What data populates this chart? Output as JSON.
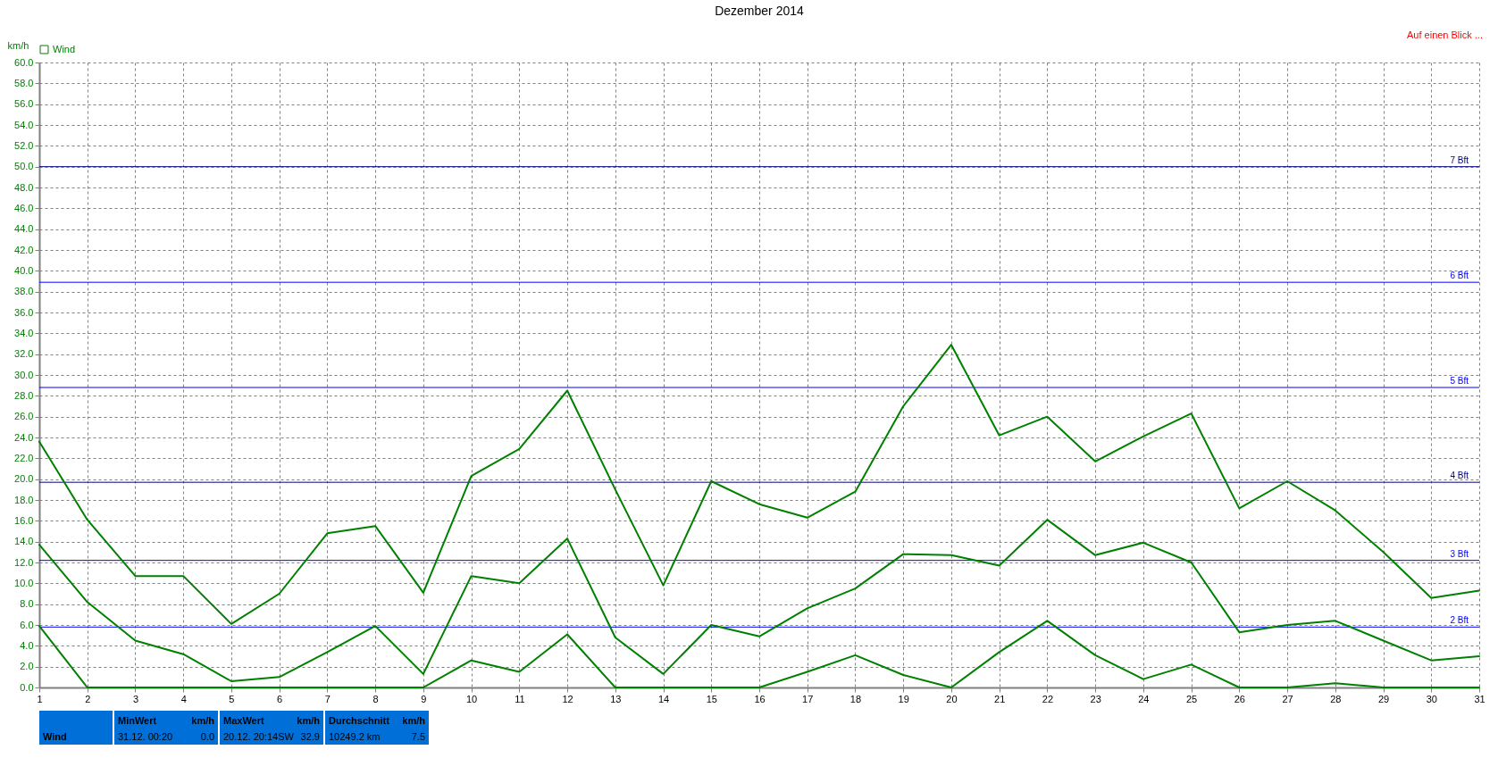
{
  "chart_data": {
    "type": "line",
    "title": "Dezember 2014",
    "ylabel": "km/h",
    "x": [
      1,
      2,
      3,
      4,
      5,
      6,
      7,
      8,
      9,
      10,
      11,
      12,
      13,
      14,
      15,
      16,
      17,
      18,
      19,
      20,
      21,
      22,
      23,
      24,
      25,
      26,
      27,
      28,
      29,
      30,
      31
    ],
    "series": [
      {
        "name": "Wind",
        "color": "#008000",
        "values": [
          13.7,
          8.2,
          4.5,
          3.2,
          0.6,
          1.0,
          3.4,
          5.9,
          1.3,
          10.7,
          10.0,
          14.3,
          4.8,
          1.3,
          6.0,
          4.9,
          7.6,
          9.5,
          12.8,
          12.7,
          11.7,
          16.1,
          12.7,
          13.9,
          12.0,
          5.3,
          6.0,
          6.4,
          4.5,
          2.6,
          3.0
        ]
      },
      {
        "color": "#008000",
        "values": [
          23.6,
          16.1,
          10.7,
          10.7,
          6.1,
          9.0,
          14.8,
          15.5,
          9.1,
          20.3,
          22.9,
          28.5,
          19.0,
          9.8,
          19.8,
          17.6,
          16.3,
          18.8,
          27.0,
          32.9,
          24.2,
          26.0,
          21.7,
          24.1,
          26.3,
          17.2,
          19.8,
          17.0,
          13.0,
          8.6,
          9.3
        ]
      },
      {
        "color": "#008000",
        "values": [
          5.9,
          0,
          0,
          0,
          0,
          0,
          0,
          0,
          0,
          2.6,
          1.5,
          5.1,
          0,
          0,
          0,
          0,
          1.5,
          3.1,
          1.2,
          0,
          3.4,
          6.4,
          3.1,
          0.8,
          2.2,
          0,
          0,
          0.4,
          0,
          0,
          0
        ]
      }
    ],
    "xlim": [
      1,
      31
    ],
    "xticks": [
      1,
      2,
      3,
      4,
      5,
      6,
      7,
      8,
      9,
      10,
      11,
      12,
      13,
      14,
      15,
      16,
      17,
      18,
      19,
      20,
      21,
      22,
      23,
      24,
      25,
      26,
      27,
      28,
      29,
      30,
      31
    ],
    "ylim": [
      0,
      60
    ],
    "yticks": [
      {
        "value": 0,
        "label": "0.0"
      },
      {
        "value": 2,
        "label": "2.0"
      },
      {
        "value": 4,
        "label": "4.0"
      },
      {
        "value": 6,
        "label": "6.0"
      },
      {
        "value": 8,
        "label": "8.0"
      },
      {
        "value": 10,
        "label": "10.0"
      },
      {
        "value": 12,
        "label": "12.0"
      },
      {
        "value": 14,
        "label": "14.0"
      },
      {
        "value": 16,
        "label": "16.0"
      },
      {
        "value": 18,
        "label": "18.0"
      },
      {
        "value": 20,
        "label": "20.0"
      },
      {
        "value": 22,
        "label": "22.0"
      },
      {
        "value": 24,
        "label": "24.0"
      },
      {
        "value": 26,
        "label": "26.0"
      },
      {
        "value": 28,
        "label": "28.0"
      },
      {
        "value": 30,
        "label": "30.0"
      },
      {
        "value": 32,
        "label": "32.0"
      },
      {
        "value": 34,
        "label": "34.0"
      },
      {
        "value": 36,
        "label": "36.0"
      },
      {
        "value": 38,
        "label": "38.0"
      },
      {
        "value": 40,
        "label": "40.0"
      },
      {
        "value": 42,
        "label": "42.0"
      },
      {
        "value": 44,
        "label": "44.0"
      },
      {
        "value": 46,
        "label": "46.0"
      },
      {
        "value": 48,
        "label": "48.0"
      },
      {
        "value": 50,
        "label": "50.0"
      },
      {
        "value": 52,
        "label": "52.0"
      },
      {
        "value": 54,
        "label": "54.0"
      },
      {
        "value": 56,
        "label": "56.0"
      },
      {
        "value": 58,
        "label": "58.0"
      },
      {
        "value": 60,
        "label": "60.0"
      }
    ],
    "ref_lines": [
      {
        "axis": "y",
        "value": 5.8,
        "label": "2 Bft",
        "color": "#0000ff"
      },
      {
        "axis": "y",
        "value": 12.2,
        "label": "3 Bft",
        "color": "#0000ff"
      },
      {
        "axis": "y",
        "value": 19.7,
        "label": "4 Bft",
        "color": "#000080"
      },
      {
        "axis": "y",
        "value": 28.8,
        "label": "5 Bft",
        "color": "#0000ff"
      },
      {
        "axis": "y",
        "value": 38.9,
        "label": "6 Bft",
        "color": "#0000ff"
      },
      {
        "axis": "y",
        "value": 50.0,
        "label": "7 Bft",
        "color": "#000080"
      }
    ],
    "grid": true,
    "legend": "top left",
    "marker": "none",
    "line_style": "solid",
    "annotations": [
      "Auf einen Blick ...",
      "Wind",
      "MinWert",
      "km/h",
      "31.12.  00:20",
      "0.0",
      "MaxWert",
      "km/h",
      "20.12.  20:14SW",
      "32.9",
      "Durchschnitt",
      "km/h",
      "10249.2 km",
      "7.5"
    ]
  }
}
